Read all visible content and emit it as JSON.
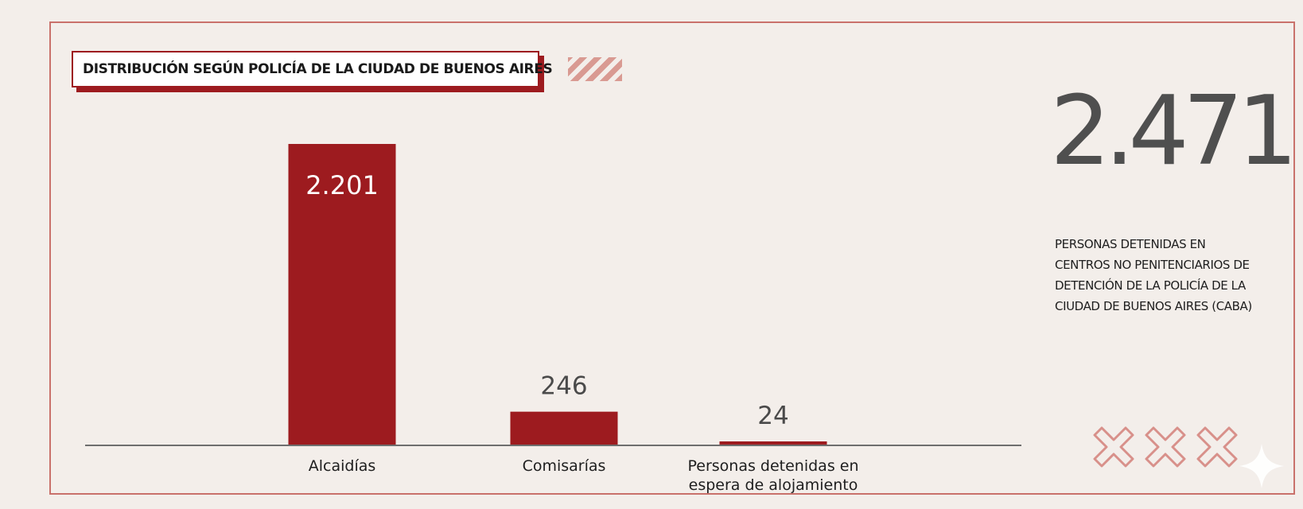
{
  "chart_data": {
    "type": "bar",
    "title": "DISTRIBUCIÓN SEGÚN POLICÍA DE LA CIUDAD DE BUENOS AIRES",
    "categories": [
      "Alcaidías",
      "Comisarías",
      "Personas detenidas en espera de alojamiento"
    ],
    "category_lines": [
      [
        "Alcaidías"
      ],
      [
        "Comisarías"
      ],
      [
        "Personas detenidas en",
        "espera de alojamiento"
      ]
    ],
    "values": [
      2201,
      246,
      24
    ],
    "value_labels": [
      "2.201",
      "246",
      "24"
    ],
    "ylim": [
      0,
      2201
    ],
    "grid": false,
    "legend": "none",
    "bar_color": "#9d1b1f"
  },
  "summary": {
    "total": "2.471",
    "description": "PERSONAS DETENIDAS EN CENTROS NO PENITENCIARIOS DE DETENCIÓN DE LA POLICÍA DE LA CIUDAD DE BUENOS AIRES (CABA)"
  },
  "decorations": {
    "stripes_icon": "hatched-stripes",
    "cross_icon": "x-cross",
    "cross_count": 3,
    "cross_color": "#d8908a",
    "sparkle_icon": "four-point-star"
  }
}
